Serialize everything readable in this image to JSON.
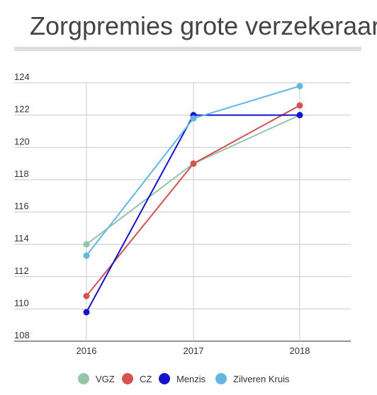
{
  "chart_data": {
    "type": "line",
    "title": "Zorgpremies grote verzekeraars",
    "xlabel": "",
    "ylabel": "",
    "categories": [
      "2016",
      "2017",
      "2018"
    ],
    "ylim": [
      108,
      124
    ],
    "yticks": [
      "108",
      "110",
      "112",
      "114",
      "116",
      "118",
      "120",
      "122",
      "124"
    ],
    "grid": true,
    "legend_position": "bottom",
    "series": [
      {
        "name": "VGZ",
        "color": "#93c4aa",
        "values": [
          114.0,
          119.0,
          122.0
        ]
      },
      {
        "name": "CZ",
        "color": "#d35353",
        "values": [
          110.8,
          119.0,
          122.6
        ]
      },
      {
        "name": "Menzis",
        "color": "#1414cc",
        "values": [
          109.8,
          122.0,
          122.0
        ]
      },
      {
        "name": "Zilveren Kruis",
        "color": "#63b6e0",
        "values": [
          113.3,
          121.8,
          123.8
        ]
      }
    ]
  }
}
